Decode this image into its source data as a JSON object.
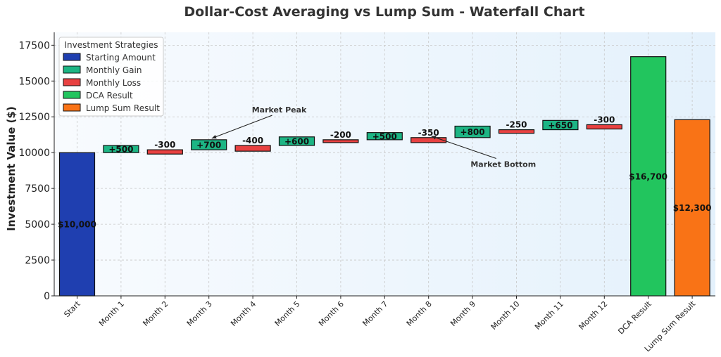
{
  "chart_data": {
    "type": "waterfall",
    "title": "Dollar-Cost Averaging vs Lump Sum - Waterfall Chart",
    "xlabel": "",
    "ylabel": "Investment Value ($)",
    "ylim": [
      0,
      18400
    ],
    "yticks": [
      0,
      2500,
      5000,
      7500,
      10000,
      12500,
      15000,
      17500
    ],
    "grid": true,
    "legend_placement": "top-left",
    "legend": {
      "title": "Investment Strategies",
      "entries": [
        {
          "label": "Starting Amount",
          "color": "#1f3fb0"
        },
        {
          "label": "Monthly Gain",
          "color": "#1db584"
        },
        {
          "label": "Monthly Loss",
          "color": "#e84141"
        },
        {
          "label": "DCA Result",
          "color": "#22c55e"
        },
        {
          "label": "Lump Sum Result",
          "color": "#f97316"
        }
      ]
    },
    "bars": [
      {
        "category": "Start",
        "kind": "start",
        "base": 0,
        "value": 10000,
        "label": "$10,000"
      },
      {
        "category": "Month 1",
        "kind": "gain",
        "base": 10000,
        "value": 500,
        "label": "+500"
      },
      {
        "category": "Month 2",
        "kind": "loss",
        "base": 10200,
        "value": -300,
        "label": "-300"
      },
      {
        "category": "Month 3",
        "kind": "gain",
        "base": 10200,
        "value": 700,
        "label": "+700"
      },
      {
        "category": "Month 4",
        "kind": "loss",
        "base": 10500,
        "value": -400,
        "label": "-400"
      },
      {
        "category": "Month 5",
        "kind": "gain",
        "base": 10500,
        "value": 600,
        "label": "+600"
      },
      {
        "category": "Month 6",
        "kind": "loss",
        "base": 10900,
        "value": -200,
        "label": "-200"
      },
      {
        "category": "Month 7",
        "kind": "gain",
        "base": 10900,
        "value": 500,
        "label": "+500"
      },
      {
        "category": "Month 8",
        "kind": "loss",
        "base": 11050,
        "value": -350,
        "label": "-350"
      },
      {
        "category": "Month 9",
        "kind": "gain",
        "base": 11050,
        "value": 800,
        "label": "+800"
      },
      {
        "category": "Month 10",
        "kind": "loss",
        "base": 11600,
        "value": -250,
        "label": "-250"
      },
      {
        "category": "Month 11",
        "kind": "gain",
        "base": 11600,
        "value": 650,
        "label": "+650"
      },
      {
        "category": "Month 12",
        "kind": "loss",
        "base": 11950,
        "value": -300,
        "label": "-300"
      },
      {
        "category": "DCA Result",
        "kind": "dca",
        "base": 0,
        "value": 16700,
        "label": "$16,700"
      },
      {
        "category": "Lump Sum Result",
        "kind": "lump",
        "base": 0,
        "value": 12300,
        "label": "$12,300"
      }
    ],
    "annotations": [
      {
        "text": "Market Peak",
        "target_category": "Month 3",
        "target_value": 10900,
        "text_category": "Month 4.6",
        "text_value": 13000
      },
      {
        "text": "Market Bottom",
        "target_category": "Month 8",
        "target_value": 11050,
        "text_category": "Month 9.7",
        "text_value": 9200
      }
    ],
    "colors": {
      "start": "#1f3fb0",
      "gain": "#1db584",
      "loss": "#e84141",
      "dca": "#22c55e",
      "lump": "#f97316",
      "edge": "#111111",
      "grid": "#c8c8c8",
      "bg_light": "#f8fbfe",
      "bg_dark": "#e4f1fc"
    }
  }
}
